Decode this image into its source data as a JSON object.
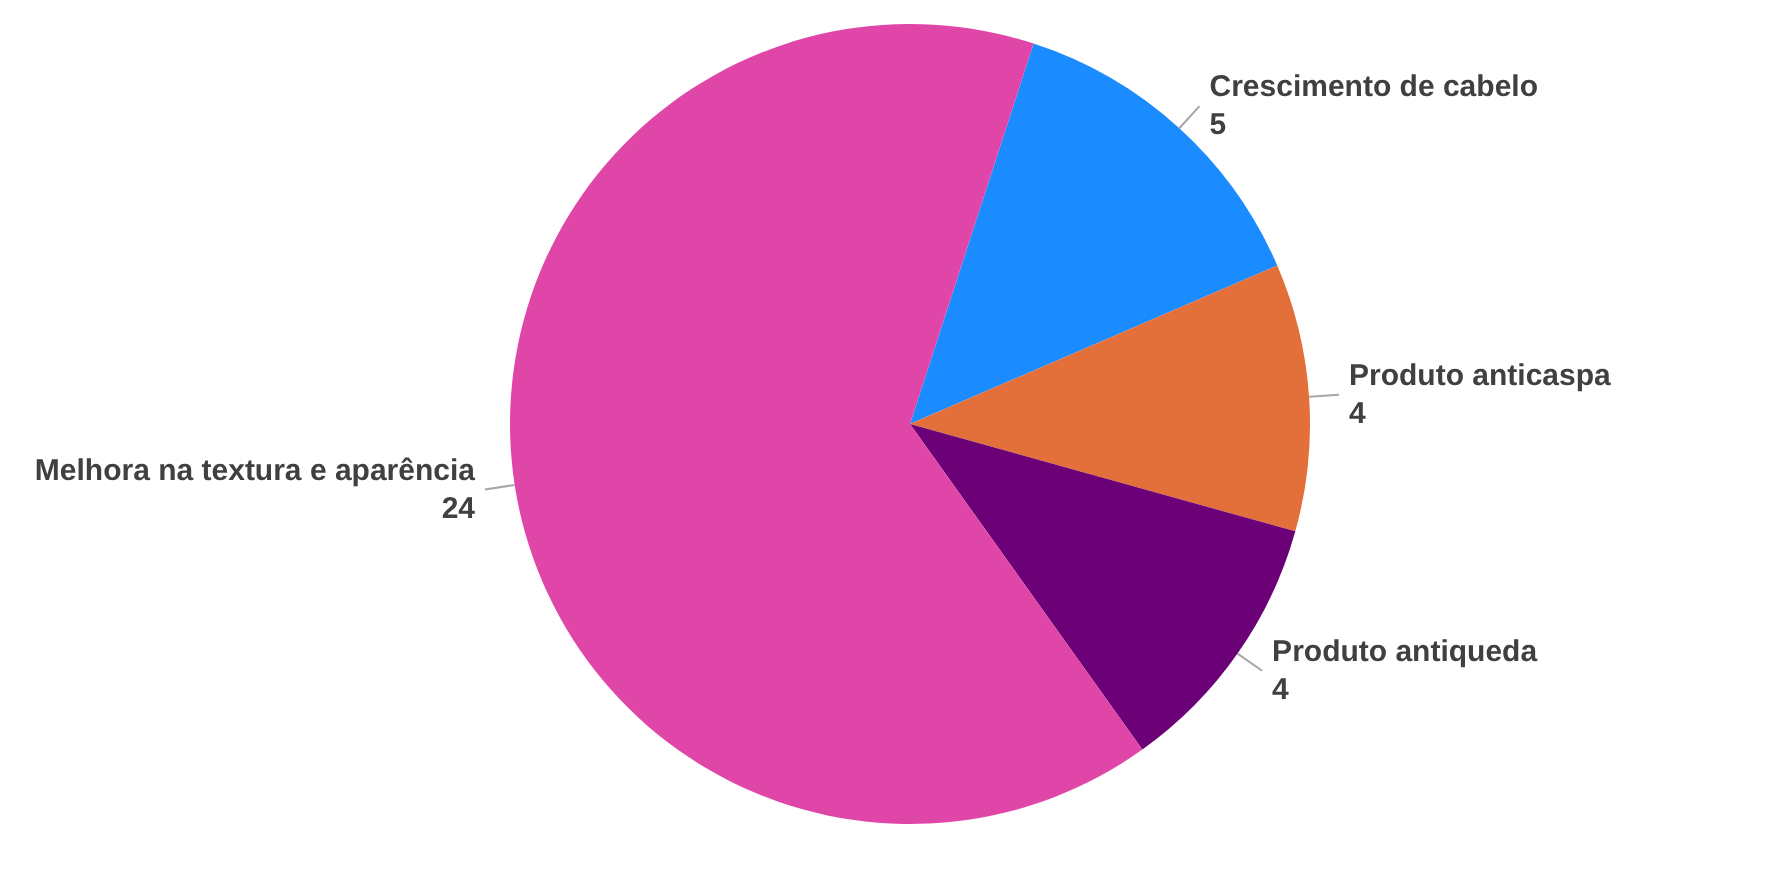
{
  "chart_data": {
    "type": "pie",
    "categories": [
      "Crescimento de cabelo",
      "Produto anticaspa",
      "Produto antiqueda",
      "Melhora na textura e aparência"
    ],
    "values": [
      5,
      4,
      4,
      24
    ],
    "colors": [
      "#1a8cff",
      "#e3703a",
      "#6b0077",
      "#e046a8"
    ],
    "data_labels": true
  }
}
